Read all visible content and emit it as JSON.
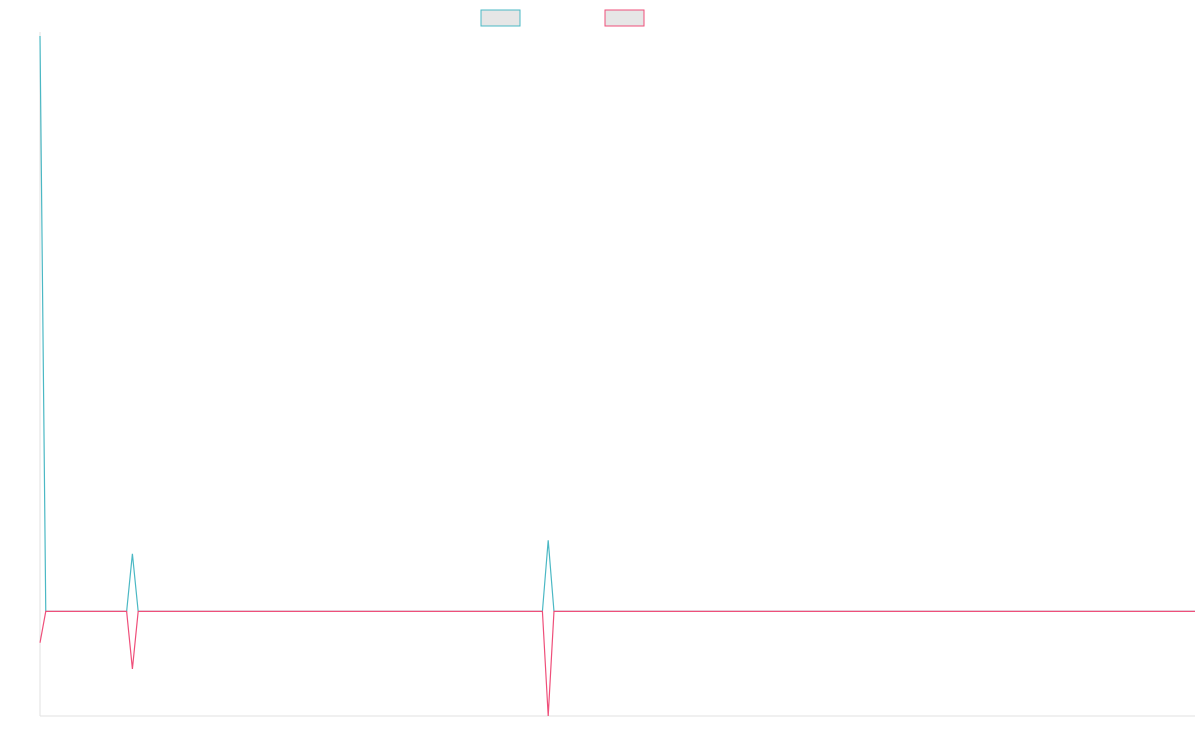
{
  "chart_data": {
    "type": "line",
    "title": "",
    "xlabel": "",
    "ylabel": "",
    "grid": false,
    "legend": {
      "placement": "top-center",
      "entries": [
        {
          "name": "",
          "color": "#4bb8c4",
          "fill": "#e6e6e6"
        },
        {
          "name": "",
          "color": "#ef4f7a",
          "fill": "#e6e6e6"
        }
      ]
    },
    "x": [
      0,
      1,
      2,
      3,
      4,
      5,
      6,
      7,
      8,
      9,
      10,
      11,
      12,
      13,
      14,
      15,
      16,
      17,
      18,
      19,
      20,
      21,
      22,
      23,
      24,
      25,
      26,
      27,
      28,
      29,
      30,
      31,
      32,
      33,
      34,
      35,
      36,
      37,
      38,
      39,
      40,
      41,
      42,
      43,
      44,
      45,
      46,
      47,
      48,
      49,
      50,
      51,
      52,
      53,
      54,
      55,
      56,
      57,
      58,
      59,
      60,
      61,
      62,
      63,
      64,
      65,
      66,
      67,
      68,
      69,
      70,
      71,
      72,
      73,
      74,
      75,
      76,
      77,
      78,
      79,
      80,
      81,
      82,
      83,
      84,
      85,
      86,
      87,
      88,
      89,
      90,
      91,
      92,
      93,
      94,
      95,
      96,
      97,
      98,
      99,
      100,
      101,
      102,
      103,
      104,
      105,
      106,
      107,
      108,
      109,
      110,
      111,
      112,
      113,
      114,
      115,
      116,
      117,
      118,
      119,
      120,
      121,
      122,
      123,
      124,
      125,
      126,
      127,
      128,
      129,
      130,
      131,
      132,
      133,
      134,
      135,
      136,
      137,
      138,
      139,
      140,
      141,
      142,
      143,
      144,
      145,
      146,
      147,
      148,
      149,
      150,
      151,
      152,
      153,
      154,
      155,
      156,
      157,
      158,
      159,
      160,
      161,
      162,
      163,
      164,
      165,
      166,
      167,
      168,
      169,
      170,
      171,
      172,
      173,
      174,
      175,
      176,
      177,
      178,
      179,
      180,
      181,
      182,
      183,
      184,
      185,
      186,
      187,
      188,
      189,
      190,
      191,
      192,
      193,
      194,
      195,
      196,
      197,
      198,
      199,
      200
    ],
    "xlim": [
      0,
      200
    ],
    "ylim": [
      -10,
      55
    ],
    "series": [
      {
        "name": "",
        "color": "#4bb8c4",
        "values": [
          55,
          0,
          0,
          0,
          0,
          0,
          0,
          0,
          0,
          0,
          0,
          0,
          0,
          0,
          0,
          0,
          5.5,
          0,
          0,
          0,
          0,
          0,
          0,
          0,
          0,
          0,
          0,
          0,
          0,
          0,
          0,
          0,
          0,
          0,
          0,
          0,
          0,
          0,
          0,
          0,
          0,
          0,
          0,
          0,
          0,
          0,
          0,
          0,
          0,
          0,
          0,
          0,
          0,
          0,
          0,
          0,
          0,
          0,
          0,
          0,
          0,
          0,
          0,
          0,
          0,
          0,
          0,
          0,
          0,
          0,
          0,
          0,
          0,
          0,
          0,
          0,
          0,
          0,
          0,
          0,
          0,
          0,
          0,
          0,
          0,
          0,
          0,
          0,
          6.8,
          0,
          0,
          0,
          0,
          0,
          0,
          0,
          0,
          0,
          0,
          0,
          0,
          0,
          0,
          0,
          0,
          0,
          0,
          0,
          0,
          0,
          0,
          0,
          0,
          0,
          0,
          0,
          0,
          0,
          0,
          0,
          0,
          0,
          0,
          0,
          0,
          0,
          0,
          0,
          0,
          0,
          0,
          0,
          0,
          0,
          0,
          0,
          0,
          0,
          0,
          0,
          0,
          0,
          0,
          0,
          0,
          0,
          0,
          0,
          0,
          0,
          0,
          0,
          0,
          0,
          0,
          0,
          0,
          0,
          0,
          0,
          0,
          0,
          0,
          0,
          0,
          0,
          0,
          0,
          0,
          0,
          0,
          0,
          0,
          0,
          0,
          0,
          0,
          0,
          0,
          0,
          0,
          0,
          0,
          0,
          0,
          0,
          0,
          0,
          0,
          0,
          0,
          0,
          0,
          0,
          0,
          0,
          0,
          0,
          0,
          0,
          0
        ]
      },
      {
        "name": "",
        "color": "#ef4f7a",
        "values": [
          -3,
          0,
          0,
          0,
          0,
          0,
          0,
          0,
          0,
          0,
          0,
          0,
          0,
          0,
          0,
          0,
          -5.5,
          0,
          0,
          0,
          0,
          0,
          0,
          0,
          0,
          0,
          0,
          0,
          0,
          0,
          0,
          0,
          0,
          0,
          0,
          0,
          0,
          0,
          0,
          0,
          0,
          0,
          0,
          0,
          0,
          0,
          0,
          0,
          0,
          0,
          0,
          0,
          0,
          0,
          0,
          0,
          0,
          0,
          0,
          0,
          0,
          0,
          0,
          0,
          0,
          0,
          0,
          0,
          0,
          0,
          0,
          0,
          0,
          0,
          0,
          0,
          0,
          0,
          0,
          0,
          0,
          0,
          0,
          0,
          0,
          0,
          0,
          0,
          -10,
          0,
          0,
          0,
          0,
          0,
          0,
          0,
          0,
          0,
          0,
          0,
          0,
          0,
          0,
          0,
          0,
          0,
          0,
          0,
          0,
          0,
          0,
          0,
          0,
          0,
          0,
          0,
          0,
          0,
          0,
          0,
          0,
          0,
          0,
          0,
          0,
          0,
          0,
          0,
          0,
          0,
          0,
          0,
          0,
          0,
          0,
          0,
          0,
          0,
          0,
          0,
          0,
          0,
          0,
          0,
          0,
          0,
          0,
          0,
          0,
          0,
          0,
          0,
          0,
          0,
          0,
          0,
          0,
          0,
          0,
          0,
          0,
          0,
          0,
          0,
          0,
          0,
          0,
          0,
          0,
          0,
          0,
          0,
          0,
          0,
          0,
          0,
          0,
          0,
          0,
          0,
          0,
          0,
          0,
          0,
          0,
          0,
          0,
          0,
          0,
          0,
          0,
          0,
          0,
          0,
          0,
          0,
          0,
          0,
          0,
          0,
          0
        ]
      }
    ]
  }
}
